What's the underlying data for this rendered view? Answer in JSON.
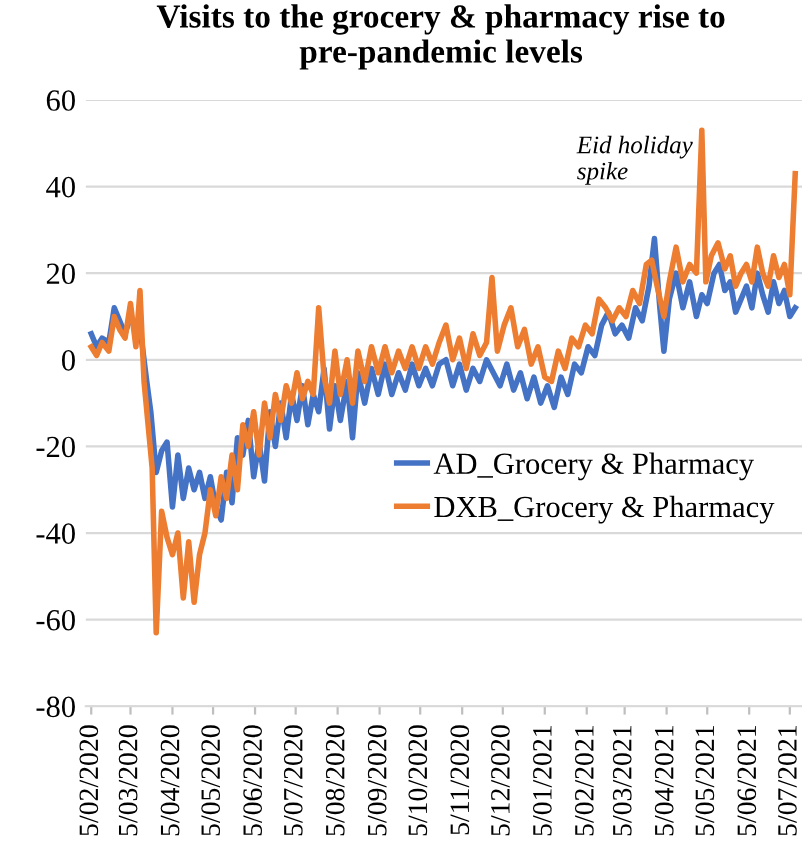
{
  "chart_data": {
    "type": "line",
    "title": "Visits to the grocery & pharmacy rise to\npre-pandemic levels",
    "series": [
      {
        "name": "AD_Grocery & Pharmacy",
        "color": "#4472c4",
        "x": [
          "2020-02-05",
          "2020-02-09",
          "2020-02-13",
          "2020-02-18",
          "2020-02-22",
          "2020-02-26",
          "2020-03-01",
          "2020-03-05",
          "2020-03-09",
          "2020-03-13",
          "2020-03-17",
          "2020-03-20",
          "2020-03-24",
          "2020-03-28",
          "2020-04-01",
          "2020-04-05",
          "2020-04-09",
          "2020-04-13",
          "2020-04-17",
          "2020-04-21",
          "2020-04-25",
          "2020-04-29",
          "2020-05-03",
          "2020-05-07",
          "2020-05-11",
          "2020-05-15",
          "2020-05-19",
          "2020-05-23",
          "2020-05-27",
          "2020-05-31",
          "2020-06-04",
          "2020-06-08",
          "2020-06-12",
          "2020-06-16",
          "2020-06-20",
          "2020-06-24",
          "2020-06-28",
          "2020-07-02",
          "2020-07-06",
          "2020-07-10",
          "2020-07-14",
          "2020-07-18",
          "2020-07-22",
          "2020-07-26",
          "2020-07-30",
          "2020-08-03",
          "2020-08-07",
          "2020-08-12",
          "2020-08-16",
          "2020-08-20",
          "2020-08-25",
          "2020-08-30",
          "2020-09-04",
          "2020-09-09",
          "2020-09-14",
          "2020-09-19",
          "2020-09-24",
          "2020-09-29",
          "2020-10-04",
          "2020-10-09",
          "2020-10-14",
          "2020-10-19",
          "2020-10-24",
          "2020-10-29",
          "2020-11-03",
          "2020-11-08",
          "2020-11-13",
          "2020-11-18",
          "2020-11-23",
          "2020-11-28",
          "2020-12-03",
          "2020-12-08",
          "2020-12-13",
          "2020-12-18",
          "2020-12-23",
          "2020-12-28",
          "2021-01-02",
          "2021-01-07",
          "2021-01-12",
          "2021-01-17",
          "2021-01-22",
          "2021-01-27",
          "2021-02-01",
          "2021-02-06",
          "2021-02-11",
          "2021-02-16",
          "2021-02-21",
          "2021-02-26",
          "2021-03-03",
          "2021-03-08",
          "2021-03-13",
          "2021-03-18",
          "2021-03-23",
          "2021-03-27",
          "2021-03-31",
          "2021-04-03",
          "2021-04-07",
          "2021-04-12",
          "2021-04-17",
          "2021-04-22",
          "2021-04-27",
          "2021-05-01",
          "2021-05-05",
          "2021-05-10",
          "2021-05-14",
          "2021-05-18",
          "2021-05-22",
          "2021-05-26",
          "2021-05-30",
          "2021-06-03",
          "2021-06-07",
          "2021-06-11",
          "2021-06-15",
          "2021-06-19",
          "2021-06-23",
          "2021-06-27",
          "2021-07-01",
          "2021-07-05",
          "2021-07-09"
        ],
        "values": [
          6,
          3,
          5,
          4,
          12,
          9,
          6,
          10,
          null,
          5,
          -5,
          -12,
          -26,
          -21,
          -19,
          -34,
          -22,
          -32,
          -25,
          -30,
          -26,
          -32,
          -27,
          -34,
          -37,
          -26,
          -33,
          -18,
          -22,
          -14,
          -27,
          -19,
          -28,
          -12,
          -20,
          -10,
          -18,
          -8,
          -14,
          -6,
          -15,
          -8,
          -12,
          -2,
          -16,
          -6,
          -14,
          -5,
          -18,
          -3,
          -10,
          -2,
          -8,
          -1,
          -8,
          -3,
          -7,
          -1,
          -6,
          -2,
          -6,
          -1,
          0,
          -6,
          -1,
          -7,
          -2,
          -5,
          0,
          -3,
          -6,
          -1,
          -7,
          -3,
          -9,
          -4,
          -10,
          -6,
          -11,
          -4,
          -8,
          -1,
          -3,
          3,
          1,
          8,
          11,
          6,
          8,
          5,
          12,
          9,
          17,
          28,
          12,
          2,
          14,
          20,
          12,
          18,
          10,
          15,
          13,
          20,
          22,
          16,
          18,
          11,
          14,
          17,
          12,
          20,
          15,
          11,
          18,
          13,
          16,
          10,
          12
        ]
      },
      {
        "name": "DXB_Grocery & Pharmacy",
        "color": "#ed7d31",
        "x": [
          "2020-02-05",
          "2020-02-09",
          "2020-02-13",
          "2020-02-18",
          "2020-02-22",
          "2020-02-26",
          "2020-03-01",
          "2020-03-05",
          "2020-03-09",
          "2020-03-12",
          "2020-03-15",
          "2020-03-18",
          "2020-03-21",
          "2020-03-24",
          "2020-03-28",
          "2020-04-01",
          "2020-04-05",
          "2020-04-09",
          "2020-04-13",
          "2020-04-17",
          "2020-04-21",
          "2020-04-25",
          "2020-04-29",
          "2020-05-03",
          "2020-05-07",
          "2020-05-11",
          "2020-05-15",
          "2020-05-19",
          "2020-05-23",
          "2020-05-27",
          "2020-05-31",
          "2020-06-04",
          "2020-06-08",
          "2020-06-12",
          "2020-06-16",
          "2020-06-20",
          "2020-06-24",
          "2020-06-28",
          "2020-07-02",
          "2020-07-06",
          "2020-07-10",
          "2020-07-14",
          "2020-07-18",
          "2020-07-22",
          "2020-07-26",
          "2020-07-30",
          "2020-08-03",
          "2020-08-07",
          "2020-08-12",
          "2020-08-16",
          "2020-08-20",
          "2020-08-25",
          "2020-08-30",
          "2020-09-04",
          "2020-09-09",
          "2020-09-14",
          "2020-09-19",
          "2020-09-24",
          "2020-09-29",
          "2020-10-04",
          "2020-10-09",
          "2020-10-14",
          "2020-10-19",
          "2020-10-24",
          "2020-10-29",
          "2020-11-03",
          "2020-11-08",
          "2020-11-13",
          "2020-11-18",
          "2020-11-23",
          "2020-11-27",
          "2020-12-01",
          "2020-12-06",
          "2020-12-11",
          "2020-12-16",
          "2020-12-21",
          "2020-12-26",
          "2020-12-31",
          "2021-01-05",
          "2021-01-10",
          "2021-01-15",
          "2021-01-20",
          "2021-01-25",
          "2021-01-30",
          "2021-02-04",
          "2021-02-09",
          "2021-02-14",
          "2021-02-19",
          "2021-02-24",
          "2021-03-01",
          "2021-03-06",
          "2021-03-11",
          "2021-03-16",
          "2021-03-21",
          "2021-03-25",
          "2021-03-29",
          "2021-04-03",
          "2021-04-07",
          "2021-04-12",
          "2021-04-17",
          "2021-04-22",
          "2021-04-27",
          "2021-05-01",
          "2021-05-04",
          "2021-05-08",
          "2021-05-13",
          "2021-05-18",
          "2021-05-22",
          "2021-05-26",
          "2021-05-30",
          "2021-06-03",
          "2021-06-07",
          "2021-06-11",
          "2021-06-15",
          "2021-06-19",
          "2021-06-23",
          "2021-06-27",
          "2021-07-01",
          "2021-07-05",
          "2021-07-09"
        ],
        "values": [
          3,
          1,
          4,
          2,
          10,
          7,
          5,
          13,
          3,
          16,
          -5,
          -15,
          -25,
          -63,
          -35,
          -41,
          -45,
          -40,
          -55,
          -42,
          -56,
          -45,
          -40,
          -30,
          -36,
          -27,
          -32,
          -22,
          -30,
          -15,
          -20,
          -12,
          -22,
          -10,
          -18,
          -8,
          -14,
          -6,
          -10,
          -3,
          -9,
          -5,
          -8,
          12,
          -4,
          -10,
          2,
          -8,
          0,
          -10,
          2,
          -5,
          3,
          -3,
          3,
          -3,
          2,
          -2,
          3,
          -2,
          3,
          -1,
          4,
          8,
          0,
          5,
          -2,
          6,
          1,
          4,
          19,
          2,
          8,
          12,
          3,
          7,
          -1,
          3,
          -4,
          -5,
          2,
          -2,
          5,
          3,
          8,
          6,
          14,
          12,
          9,
          12,
          10,
          16,
          13,
          22,
          23,
          17,
          10,
          18,
          26,
          18,
          22,
          20,
          53,
          18,
          24,
          27,
          21,
          24,
          17,
          20,
          22,
          18,
          26,
          20,
          17,
          24,
          19,
          22,
          15,
          43
        ]
      }
    ],
    "annotations": [
      {
        "text": "Eid holiday\nspike",
        "x": "2021-05-01",
        "y": 53
      }
    ],
    "xlim": [
      "2020-02-01",
      "2021-07-14"
    ],
    "xticks": [
      {
        "value": "2020-02-05",
        "label": "5/02/2020"
      },
      {
        "value": "2020-03-05",
        "label": "5/03/2020"
      },
      {
        "value": "2020-04-05",
        "label": "5/04/2020"
      },
      {
        "value": "2020-05-05",
        "label": "5/05/2020"
      },
      {
        "value": "2020-06-05",
        "label": "5/06/2020"
      },
      {
        "value": "2020-07-05",
        "label": "5/07/2020"
      },
      {
        "value": "2020-08-05",
        "label": "5/08/2020"
      },
      {
        "value": "2020-09-05",
        "label": "5/09/2020"
      },
      {
        "value": "2020-10-05",
        "label": "5/10/2020"
      },
      {
        "value": "2020-11-05",
        "label": "5/11/2020"
      },
      {
        "value": "2020-12-05",
        "label": "5/12/2020"
      },
      {
        "value": "2021-01-05",
        "label": "5/01/2021"
      },
      {
        "value": "2021-02-05",
        "label": "5/02/2021"
      },
      {
        "value": "2021-03-05",
        "label": "5/03/2021"
      },
      {
        "value": "2021-04-05",
        "label": "5/04/2021"
      },
      {
        "value": "2021-05-05",
        "label": "5/05/2021"
      },
      {
        "value": "2021-06-05",
        "label": "5/06/2021"
      },
      {
        "value": "2021-07-05",
        "label": "5/07/2021"
      }
    ],
    "ylim": [
      -80,
      60
    ],
    "yticks": [
      -80,
      -60,
      -40,
      -20,
      0,
      20,
      40,
      60
    ],
    "grid": "y",
    "legend": "right",
    "marker": "none",
    "line_style": "solid"
  }
}
